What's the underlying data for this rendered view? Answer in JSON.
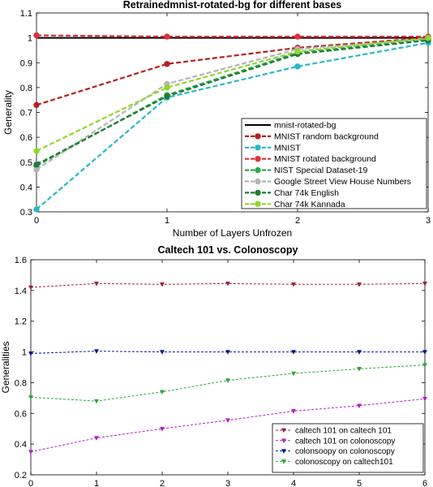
{
  "charts": [
    {
      "type": "line",
      "title": "Retrainedmnist-rotated-bg for different bases",
      "xlabel": "Number of Layers Unfrozen",
      "ylabel": "Generality",
      "x": [
        0,
        1,
        2,
        3
      ],
      "xlim": [
        0,
        3
      ],
      "ylim": [
        0.3,
        1.1
      ],
      "xticks": [
        "0",
        "1",
        "2",
        "3"
      ],
      "yticks": [
        "0.3",
        "0.4",
        "0.5",
        "0.6",
        "0.7",
        "0.8",
        "0.9",
        "1",
        "1.1"
      ],
      "grid": false,
      "legend_position": "bottom-right",
      "series": [
        {
          "name": "mnist-rotated-bg",
          "color": "#000000",
          "dash": "solid",
          "width": 2,
          "marker": "none",
          "values": [
            1.0,
            1.0,
            1.0,
            1.0
          ]
        },
        {
          "name": "MNIST random background",
          "color": "#b22222",
          "dash": "dashed",
          "width": 2.2,
          "marker": "circle",
          "values": [
            0.73,
            0.895,
            0.96,
            1.0
          ]
        },
        {
          "name": "MNIST",
          "color": "#2ab7c9",
          "dash": "dashed",
          "width": 2.2,
          "marker": "circle",
          "values": [
            0.31,
            0.76,
            0.885,
            0.98
          ]
        },
        {
          "name": "MNIST rotated background",
          "color": "#e0303a",
          "dash": "dashed",
          "width": 2.2,
          "marker": "circle",
          "values": [
            1.01,
            1.005,
            1.005,
            1.005
          ]
        },
        {
          "name": "NIST Special Dataset-19",
          "color": "#2fa84f",
          "dash": "dashed",
          "width": 2.2,
          "marker": "circle",
          "values": [
            0.485,
            0.77,
            0.94,
            0.995
          ]
        },
        {
          "name": "Google Street View House Numbers",
          "color": "#b5b5b5",
          "dash": "dashed",
          "width": 2.2,
          "marker": "circle",
          "values": [
            0.47,
            0.815,
            0.955,
            0.995
          ]
        },
        {
          "name": "Char 74k English",
          "color": "#1e7d32",
          "dash": "dashed",
          "width": 2.2,
          "marker": "circle",
          "values": [
            0.49,
            0.765,
            0.935,
            0.99
          ]
        },
        {
          "name": "Char 74k Kannada",
          "color": "#8fd62f",
          "dash": "dashed",
          "width": 2.2,
          "marker": "circle",
          "values": [
            0.545,
            0.8,
            0.945,
            1.0
          ]
        }
      ]
    },
    {
      "type": "line",
      "title": "Caltech 101 vs. Colonoscopy",
      "xlabel": "",
      "ylabel": "Generalities",
      "x": [
        0,
        1,
        2,
        3,
        4,
        5,
        6
      ],
      "xlim": [
        0,
        6
      ],
      "ylim": [
        0.2,
        1.6
      ],
      "xticks": [
        "0",
        "1",
        "2",
        "3",
        "4",
        "5",
        "6"
      ],
      "yticks": [
        "0.2",
        "0.4",
        "0.6",
        "0.8",
        "1",
        "1.2",
        "1.4",
        "1.6"
      ],
      "grid": false,
      "legend_position": "bottom-right",
      "series": [
        {
          "name": "caltech 101 on caltech 101",
          "color": "#a0203a",
          "dash": "dashed",
          "width": 1,
          "marker": "triangle",
          "values": [
            1.42,
            1.445,
            1.44,
            1.445,
            1.44,
            1.44,
            1.445
          ]
        },
        {
          "name": "caltech 101 on colonoscopy",
          "color": "#b020c0",
          "dash": "dashed",
          "width": 1,
          "marker": "triangle",
          "values": [
            0.35,
            0.44,
            0.5,
            0.555,
            0.615,
            0.65,
            0.695
          ]
        },
        {
          "name": "colonsoopy on colonoscopy",
          "color": "#0a1a8f",
          "dash": "dashed",
          "width": 1,
          "marker": "triangle",
          "values": [
            0.99,
            1.005,
            1.0,
            1.0,
            1.0,
            1.0,
            1.0
          ]
        },
        {
          "name": "colonoscopy on caltech101",
          "color": "#2aa83a",
          "dash": "dashed",
          "width": 1,
          "marker": "triangle",
          "values": [
            0.705,
            0.68,
            0.74,
            0.815,
            0.86,
            0.89,
            0.915
          ]
        }
      ]
    }
  ]
}
